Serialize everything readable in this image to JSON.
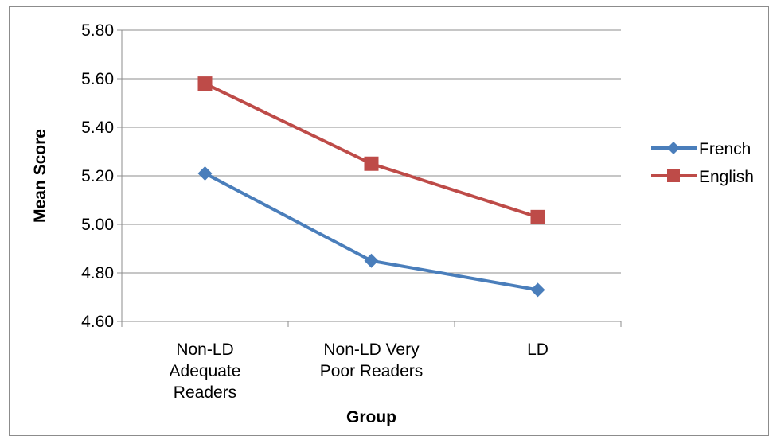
{
  "chart_data": {
    "type": "line",
    "title": "",
    "xlabel": "Group",
    "ylabel": "Mean Score",
    "categories": [
      [
        "Non-LD",
        "Adequate",
        "Readers"
      ],
      [
        "Non-LD Very",
        "Poor Readers"
      ],
      [
        "LD"
      ]
    ],
    "series": [
      {
        "name": "French",
        "values": [
          5.21,
          4.85,
          4.73
        ],
        "color": "#4a7ebb",
        "marker": "diamond"
      },
      {
        "name": "English",
        "values": [
          5.58,
          5.25,
          5.03
        ],
        "color": "#be4b48",
        "marker": "square"
      }
    ],
    "ylim": [
      4.6,
      5.8
    ],
    "yticks": [
      "4.60",
      "4.80",
      "5.00",
      "5.20",
      "5.40",
      "5.60",
      "5.80"
    ],
    "grid": true,
    "legend": "right"
  }
}
